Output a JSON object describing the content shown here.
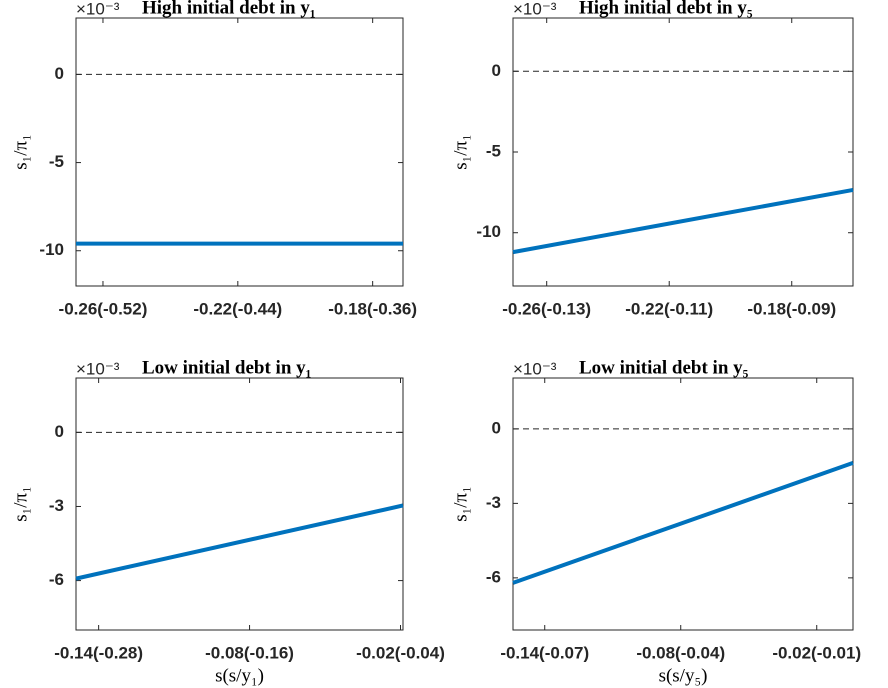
{
  "chart_data": [
    {
      "type": "line",
      "title": "High initial debt in y₁",
      "multiplier": "×10⁻³",
      "ylabel": "s₁/π₁",
      "x": [
        -0.268,
        -0.171
      ],
      "xlim": [
        -0.268,
        -0.171
      ],
      "xticks": [
        {
          "value": -0.26,
          "label": "-0.26(-0.52)"
        },
        {
          "value": -0.22,
          "label": "-0.22(-0.44)"
        },
        {
          "value": -0.18,
          "label": "-0.18(-0.36)"
        }
      ],
      "ylim": [
        -12,
        3.2
      ],
      "yticks": [
        0,
        -5,
        -10
      ],
      "hline": 0,
      "series": [
        {
          "color": "#0072bd",
          "values": [
            -9.6,
            -9.6
          ]
        }
      ]
    },
    {
      "type": "line",
      "title": "High initial debt in y₅",
      "multiplier": "×10⁻³",
      "ylabel": "s₁/π₁",
      "x": [
        -0.271,
        -0.16
      ],
      "xlim": [
        -0.271,
        -0.16
      ],
      "xticks": [
        {
          "value": -0.26,
          "label": "-0.26(-0.13)"
        },
        {
          "value": -0.22,
          "label": "-0.22(-0.11)"
        },
        {
          "value": -0.18,
          "label": "-0.18(-0.09)"
        }
      ],
      "ylim": [
        -13.3,
        3.3
      ],
      "yticks": [
        0,
        -5,
        -10
      ],
      "hline": 0,
      "series": [
        {
          "color": "#0072bd",
          "values": [
            -11.2,
            -7.35
          ]
        }
      ]
    },
    {
      "type": "line",
      "title": "Low initial debt in y₁",
      "multiplier": "×10⁻³",
      "ylabel": "s₁/π₁",
      "xlabel": "s(s/y₁)",
      "x": [
        -0.149,
        -0.019
      ],
      "xlim": [
        -0.149,
        -0.019
      ],
      "xticks": [
        {
          "value": -0.14,
          "label": "-0.14(-0.28)"
        },
        {
          "value": -0.08,
          "label": "-0.08(-0.16)"
        },
        {
          "value": -0.02,
          "label": "-0.02(-0.04)"
        }
      ],
      "ylim": [
        -8,
        2.2
      ],
      "yticks": [
        0,
        -3,
        -6
      ],
      "hline": 0,
      "series": [
        {
          "color": "#0072bd",
          "values": [
            -5.92,
            -2.96
          ]
        }
      ]
    },
    {
      "type": "line",
      "title": "Low initial debt in y₅",
      "multiplier": "×10⁻³",
      "ylabel": "s₁/π₁",
      "xlabel": "s(s/y₅)",
      "x": [
        -0.154,
        -0.004
      ],
      "xlim": [
        -0.154,
        -0.004
      ],
      "xticks": [
        {
          "value": -0.14,
          "label": "-0.14(-0.07)"
        },
        {
          "value": -0.08,
          "label": "-0.08(-0.04)"
        },
        {
          "value": -0.02,
          "label": "-0.02(-0.01)"
        }
      ],
      "ylim": [
        -8.1,
        2.05
      ],
      "yticks": [
        0,
        -3,
        -6
      ],
      "hline": 0,
      "series": [
        {
          "color": "#0072bd",
          "values": [
            -6.2,
            -1.37
          ]
        }
      ]
    }
  ]
}
